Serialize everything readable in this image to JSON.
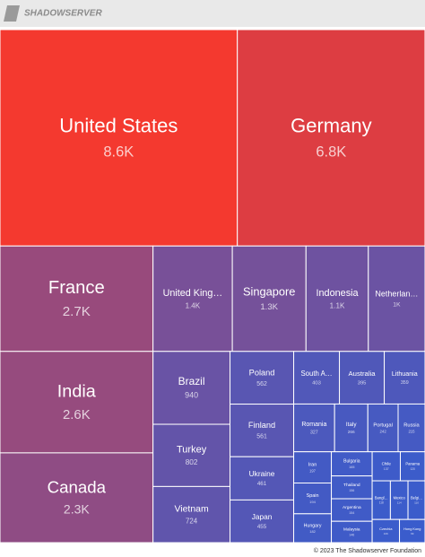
{
  "header": {
    "logo": "SHADOWSERVER"
  },
  "chart_data": {
    "type": "treemap",
    "categories": [
      "United States",
      "Germany",
      "France",
      "India",
      "Canada",
      "United King…",
      "Singapore",
      "Indonesia",
      "Netherlan…",
      "Brazil",
      "Turkey",
      "Vietnam",
      "Poland",
      "Finland",
      "Ukraine",
      "Japan",
      "South A…",
      "Australia",
      "Lithuania",
      "Romania",
      "Italy",
      "Portugal",
      "Russia",
      "Iran",
      "Spain",
      "Hungary",
      "Bulgaria",
      "Thailand",
      "Argentina",
      "Malaysia",
      "Chile",
      "Panama",
      "Bangl…",
      "Mexico",
      "Belgi…",
      "Czechia",
      "Hong Kong"
    ],
    "values": [
      8600,
      6800,
      2700,
      2600,
      2300,
      1400,
      1300,
      1100,
      1000,
      940,
      802,
      724,
      562,
      561,
      461,
      455,
      403,
      395,
      359,
      327,
      266,
      242,
      215,
      197,
      194,
      182,
      165,
      156,
      154,
      146,
      137,
      120,
      118,
      114,
      110,
      106,
      99
    ],
    "value_labels": [
      "8.6K",
      "6.8K",
      "2.7K",
      "2.6K",
      "2.3K",
      "1.4K",
      "1.3K",
      "1.1K",
      "1K",
      "940",
      "802",
      "724",
      "562",
      "561",
      "461",
      "455",
      "403",
      "395",
      "359",
      "327",
      "266",
      "242",
      "215",
      "197",
      "194",
      "182",
      "165",
      "156",
      "154",
      "146",
      "137",
      "120",
      "118",
      "114",
      "110",
      "106",
      "99"
    ],
    "color_range": [
      "#3a5ccc",
      "#f4392f"
    ]
  },
  "footer": "© 2023 The Shadowserver Foundation"
}
